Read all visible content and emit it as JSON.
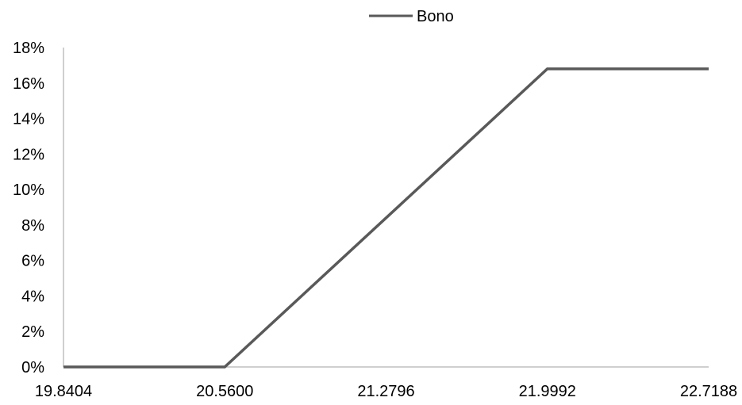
{
  "chart_data": {
    "type": "line",
    "x": [
      19.8404,
      20.56,
      21.2796,
      21.9992,
      22.7188
    ],
    "x_tick_labels": [
      "19.8404",
      "20.5600",
      "21.2796",
      "21.9992",
      "22.7188"
    ],
    "xlim": [
      19.8404,
      22.7188
    ],
    "ylim": [
      0,
      0.18
    ],
    "y_ticks": [
      0,
      0.02,
      0.04,
      0.06,
      0.08,
      0.1,
      0.12,
      0.14,
      0.16,
      0.18
    ],
    "y_tick_labels": [
      "0%",
      "2%",
      "4%",
      "6%",
      "8%",
      "10%",
      "12%",
      "14%",
      "16%",
      "18%"
    ],
    "series": [
      {
        "name": "Bono",
        "x": [
          19.8404,
          20.56,
          21.9992,
          22.7188
        ],
        "values": [
          0,
          0,
          0.168,
          0.168
        ],
        "color": "#595959"
      }
    ],
    "legend": {
      "position": "top-center",
      "entries": [
        "Bono"
      ]
    },
    "grid": false,
    "axis_color": "#bfbfbf",
    "title": "",
    "xlabel": "",
    "ylabel": ""
  }
}
